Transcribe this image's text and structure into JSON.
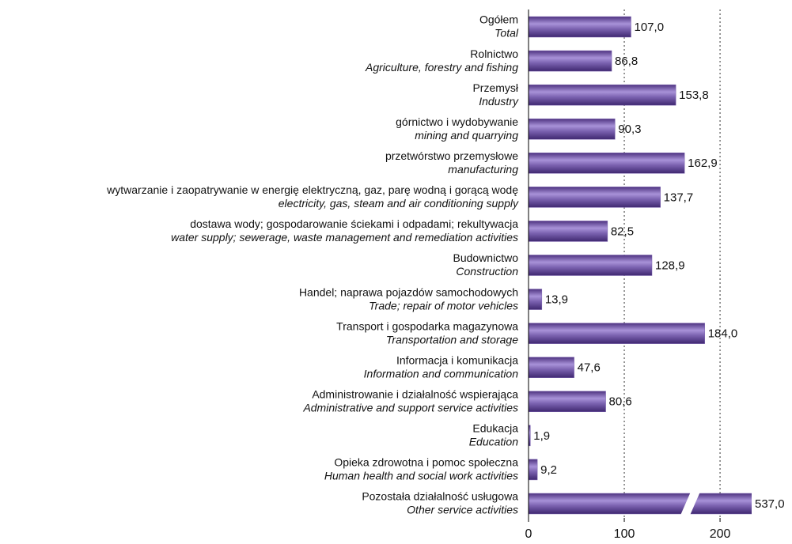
{
  "chart_data": {
    "type": "bar",
    "orientation": "horizontal",
    "categories": [
      "Ogółem",
      "Rolnictwo",
      "Przemysł",
      "górnictwo i wydobywanie",
      "przetwórstwo przemysłowe",
      "wytwarzanie i zaopatrywanie w energię elektryczną, gaz, parę wodną i gorącą wodę",
      "dostawa wody; gospodarowanie ściekami i odpadami; rekultywacja",
      "Budownictwo",
      "Handel; naprawa pojazdów samochodowych",
      "Transport i gospodarka magazynowa",
      "Informacja i komunikacja",
      "Administrowanie i działalność wspierająca",
      "Edukacja",
      "Opieka zdrowotna i pomoc społeczna",
      "Pozostała działalność usługowa"
    ],
    "categories_en": [
      "Total",
      "Agriculture, forestry and fishing",
      "Industry",
      "mining and quarrying",
      "manufacturing",
      "electricity, gas, steam and air conditioning supply",
      "water supply; sewerage, waste management and remediation activities",
      "Construction",
      "Trade; repair of motor vehicles",
      "Transportation and storage",
      "Information and communication",
      "Administrative and support service activities",
      "Education",
      "Human health and social work activities",
      "Other service activities"
    ],
    "values": [
      107.0,
      86.8,
      153.8,
      90.3,
      162.9,
      137.7,
      82.5,
      128.9,
      13.9,
      184.0,
      47.6,
      80.6,
      1.9,
      9.2,
      537.0
    ],
    "value_labels": [
      "107,0",
      "86,8",
      "153,8",
      "90,3",
      "162,9",
      "137,7",
      "82,5",
      "128,9",
      "13,9",
      "184,0",
      "47,6",
      "80,6",
      "1,9",
      "9,2",
      "537,0"
    ],
    "color": "#7b62b0",
    "xlim": [
      0,
      233
    ],
    "xticks": [
      0,
      100,
      200
    ],
    "grid": true
  }
}
